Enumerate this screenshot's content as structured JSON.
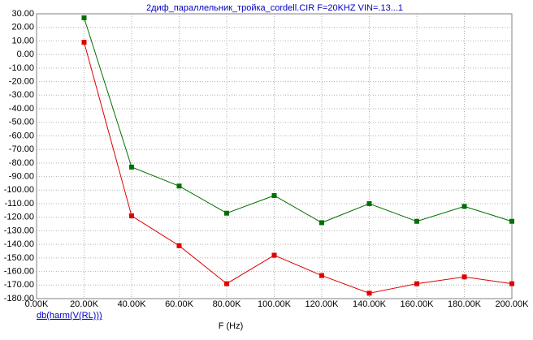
{
  "chart_data": {
    "type": "line",
    "title": "2диф_параллельник_тройка_cordell.CIR F=20KHZ VIN=.13...1",
    "y_label": "db(harm(V(RL)))",
    "x_label": "F (Hz)",
    "x": [
      20000,
      40000,
      60000,
      80000,
      100000,
      120000,
      140000,
      160000,
      180000,
      200000
    ],
    "series": [
      {
        "color": "#007000",
        "values": [
          27,
          -83,
          -97,
          -117,
          -104,
          -124,
          -110,
          -123,
          -112,
          -123
        ]
      },
      {
        "color": "#e00000",
        "values": [
          9,
          -119,
          -141,
          -169,
          -148,
          -163,
          -176,
          -169,
          -164,
          -169
        ]
      }
    ],
    "xlim": [
      0,
      200000
    ],
    "xticks": [
      {
        "value": 0,
        "label": "0.00K"
      },
      {
        "value": 20000,
        "label": "20.00K"
      },
      {
        "value": 40000,
        "label": "40.00K"
      },
      {
        "value": 60000,
        "label": "60.00K"
      },
      {
        "value": 80000,
        "label": "80.00K"
      },
      {
        "value": 100000,
        "label": "100.00K"
      },
      {
        "value": 120000,
        "label": "120.00K"
      },
      {
        "value": 140000,
        "label": "140.00K"
      },
      {
        "value": 160000,
        "label": "160.00K"
      },
      {
        "value": 180000,
        "label": "180.00K"
      },
      {
        "value": 200000,
        "label": "200.00K"
      }
    ],
    "ylim": [
      -180,
      30
    ],
    "yticks": [
      {
        "value": 30,
        "label": "30.00"
      },
      {
        "value": 20,
        "label": "20.00"
      },
      {
        "value": 10,
        "label": "10.00"
      },
      {
        "value": 0,
        "label": "0.00"
      },
      {
        "value": -10,
        "label": "-10.00"
      },
      {
        "value": -20,
        "label": "-20.00"
      },
      {
        "value": -30,
        "label": "-30.00"
      },
      {
        "value": -40,
        "label": "-40.00"
      },
      {
        "value": -50,
        "label": "-50.00"
      },
      {
        "value": -60,
        "label": "-60.00"
      },
      {
        "value": -70,
        "label": "-70.00"
      },
      {
        "value": -80,
        "label": "-80.00"
      },
      {
        "value": -90,
        "label": "-90.00"
      },
      {
        "value": -100,
        "label": "-100.00"
      },
      {
        "value": -110,
        "label": "-110.00"
      },
      {
        "value": -120,
        "label": "-120.00"
      },
      {
        "value": -130,
        "label": "-130.00"
      },
      {
        "value": -140,
        "label": "-140.00"
      },
      {
        "value": -150,
        "label": "-150.00"
      },
      {
        "value": -160,
        "label": "-160.00"
      },
      {
        "value": -170,
        "label": "-170.00"
      },
      {
        "value": -180,
        "label": "-180.00"
      }
    ],
    "grid": true
  }
}
